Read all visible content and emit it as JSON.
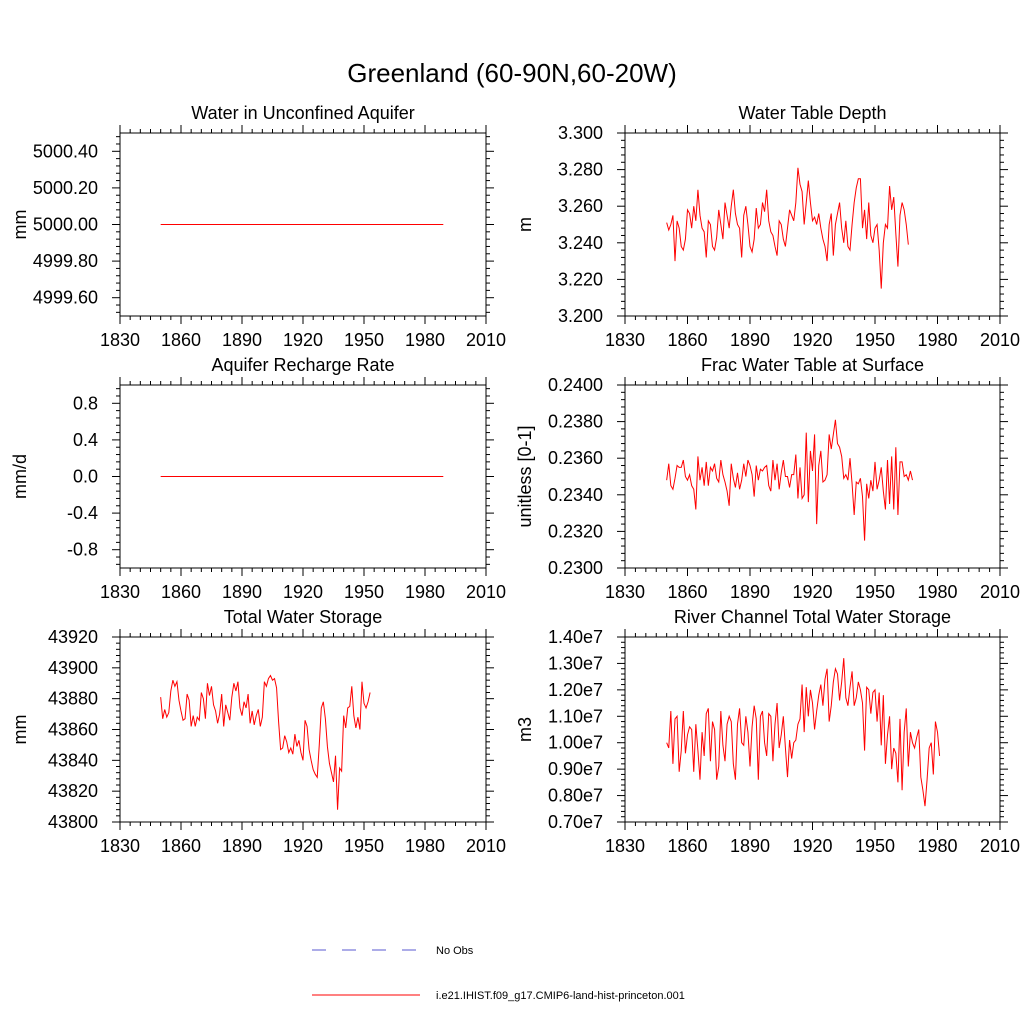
{
  "figure_title": "Greenland (60-90N,60-20W)",
  "legend": [
    {
      "label": "No Obs",
      "color": "#5a5ad0",
      "style": "dashed"
    },
    {
      "label": "i.e21.IHIST.f09_g17.CMIP6-land-hist-princeton.001",
      "color": "#ff0000",
      "style": "solid"
    }
  ],
  "chart_data": [
    {
      "type": "line",
      "title": "Water in Unconfined Aquifer",
      "ylabel": "mm",
      "xlim": [
        1830,
        2010
      ],
      "ylim": [
        4999.5,
        5000.5
      ],
      "xticks": [
        1830,
        1860,
        1890,
        1920,
        1950,
        1980,
        2010
      ],
      "yticks": [
        4999.6,
        4999.8,
        5000.0,
        5000.2,
        5000.4
      ],
      "ytick_labels": [
        "4999.60",
        "4999.80",
        "5000.00",
        "5000.20",
        "5000.40"
      ],
      "x_start": 1850,
      "series": [
        {
          "color": "#ff0000",
          "values": [
            5000,
            5000,
            5000,
            5000,
            5000,
            5000,
            5000,
            5000,
            5000,
            5000,
            5000,
            5000,
            5000,
            5000,
            5000,
            5000,
            5000,
            5000,
            5000,
            5000,
            5000,
            5000,
            5000,
            5000,
            5000,
            5000,
            5000,
            5000,
            5000,
            5000,
            5000,
            5000,
            5000,
            5000,
            5000,
            5000,
            5000,
            5000,
            5000,
            5000,
            5000,
            5000,
            5000,
            5000,
            5000,
            5000,
            5000,
            5000,
            5000,
            5000,
            5000,
            5000,
            5000,
            5000,
            5000,
            5000,
            5000,
            5000,
            5000,
            5000,
            5000,
            5000,
            5000,
            5000,
            5000,
            5000,
            5000,
            5000,
            5000,
            5000,
            5000,
            5000,
            5000,
            5000,
            5000,
            5000,
            5000,
            5000,
            5000,
            5000,
            5000,
            5000,
            5000,
            5000,
            5000,
            5000,
            5000,
            5000,
            5000,
            5000,
            5000,
            5000,
            5000,
            5000,
            5000,
            5000,
            5000,
            5000,
            5000,
            5000,
            5000,
            5000,
            5000,
            5000,
            5000,
            5000,
            5000,
            5000,
            5000,
            5000,
            5000,
            5000,
            5000,
            5000,
            5000,
            5000,
            5000,
            5000,
            5000,
            5000,
            5000,
            5000,
            5000,
            5000,
            5000,
            5000,
            5000,
            5000,
            5000,
            5000,
            5000,
            5000,
            5000,
            5000,
            5000,
            5000,
            5000,
            5000,
            5000,
            5000
          ]
        }
      ]
    },
    {
      "type": "line",
      "title": "Water Table Depth",
      "ylabel": "m",
      "xlim": [
        1830,
        2010
      ],
      "ylim": [
        3.2,
        3.3
      ],
      "xticks": [
        1830,
        1860,
        1890,
        1920,
        1950,
        1980,
        2010
      ],
      "yticks": [
        3.2,
        3.22,
        3.24,
        3.26,
        3.28,
        3.3
      ],
      "ytick_labels": [
        "3.200",
        "3.220",
        "3.240",
        "3.260",
        "3.280",
        "3.300"
      ],
      "x_start": 1850,
      "series": [
        {
          "color": "#ff0000",
          "values": [
            3.251,
            3.247,
            3.25,
            3.255,
            3.23,
            3.252,
            3.248,
            3.238,
            3.236,
            3.242,
            3.258,
            3.256,
            3.248,
            3.26,
            3.252,
            3.269,
            3.255,
            3.248,
            3.246,
            3.232,
            3.252,
            3.25,
            3.238,
            3.236,
            3.243,
            3.258,
            3.25,
            3.242,
            3.262,
            3.255,
            3.248,
            3.26,
            3.269,
            3.256,
            3.25,
            3.248,
            3.232,
            3.255,
            3.26,
            3.25,
            3.238,
            3.235,
            3.242,
            3.259,
            3.248,
            3.25,
            3.262,
            3.257,
            3.269,
            3.252,
            3.246,
            3.244,
            3.238,
            3.233,
            3.252,
            3.25,
            3.242,
            3.238,
            3.248,
            3.258,
            3.255,
            3.252,
            3.262,
            3.281,
            3.272,
            3.268,
            3.25,
            3.262,
            3.274,
            3.262,
            3.252,
            3.254,
            3.25,
            3.256,
            3.248,
            3.242,
            3.238,
            3.23,
            3.25,
            3.256,
            3.233,
            3.25,
            3.256,
            3.262,
            3.248,
            3.24,
            3.252,
            3.238,
            3.236,
            3.25,
            3.262,
            3.27,
            3.275,
            3.275,
            3.248,
            3.258,
            3.242,
            3.262,
            3.244,
            3.24,
            3.248,
            3.25,
            3.236,
            3.215,
            3.24,
            3.25,
            3.248,
            3.271,
            3.258,
            3.265,
            3.245,
            3.227,
            3.255,
            3.262,
            3.258,
            3.25,
            3.239
          ]
        }
      ]
    },
    {
      "type": "line",
      "title": "Aquifer Recharge Rate",
      "ylabel": "mm/d",
      "xlim": [
        1830,
        2010
      ],
      "ylim": [
        -1.0,
        1.0
      ],
      "xticks": [
        1830,
        1860,
        1890,
        1920,
        1950,
        1980,
        2010
      ],
      "yticks": [
        -0.8,
        -0.4,
        0.0,
        0.4,
        0.8
      ],
      "ytick_labels": [
        "-0.8",
        "-0.4",
        "0.0",
        "0.4",
        "0.8"
      ],
      "x_start": 1850,
      "series": [
        {
          "color": "#ff0000",
          "values": [
            0,
            0,
            0,
            0,
            0,
            0,
            0,
            0,
            0,
            0,
            0,
            0,
            0,
            0,
            0,
            0,
            0,
            0,
            0,
            0,
            0,
            0,
            0,
            0,
            0,
            0,
            0,
            0,
            0,
            0,
            0,
            0,
            0,
            0,
            0,
            0,
            0,
            0,
            0,
            0,
            0,
            0,
            0,
            0,
            0,
            0,
            0,
            0,
            0,
            0,
            0,
            0,
            0,
            0,
            0,
            0,
            0,
            0,
            0,
            0,
            0,
            0,
            0,
            0,
            0,
            0,
            0,
            0,
            0,
            0,
            0,
            0,
            0,
            0,
            0,
            0,
            0,
            0,
            0,
            0,
            0,
            0,
            0,
            0,
            0,
            0,
            0,
            0,
            0,
            0,
            0,
            0,
            0,
            0,
            0,
            0,
            0,
            0,
            0,
            0,
            0,
            0,
            0,
            0,
            0,
            0,
            0,
            0,
            0,
            0,
            0,
            0,
            0,
            0,
            0,
            0,
            0,
            0,
            0,
            0,
            0,
            0,
            0,
            0,
            0,
            0,
            0,
            0,
            0,
            0,
            0,
            0,
            0,
            0,
            0,
            0,
            0,
            0,
            0,
            0
          ]
        }
      ]
    },
    {
      "type": "line",
      "title": "Frac Water Table at Surface",
      "ylabel": "unitless [0-1]",
      "xlim": [
        1830,
        2010
      ],
      "ylim": [
        0.23,
        0.24
      ],
      "xticks": [
        1830,
        1860,
        1890,
        1920,
        1950,
        1980,
        2010
      ],
      "yticks": [
        0.23,
        0.232,
        0.234,
        0.236,
        0.238,
        0.24
      ],
      "ytick_labels": [
        "0.2300",
        "0.2320",
        "0.2340",
        "0.2360",
        "0.2380",
        "0.2400"
      ],
      "x_start": 1850,
      "series": [
        {
          "color": "#ff0000",
          "values": [
            0.2348,
            0.2357,
            0.2345,
            0.2343,
            0.2349,
            0.2356,
            0.2355,
            0.2355,
            0.2359,
            0.235,
            0.2348,
            0.2351,
            0.2345,
            0.2343,
            0.2332,
            0.2361,
            0.2348,
            0.2355,
            0.2345,
            0.2358,
            0.2345,
            0.2355,
            0.2353,
            0.2357,
            0.2349,
            0.2347,
            0.2359,
            0.2351,
            0.2347,
            0.2342,
            0.2334,
            0.2357,
            0.2349,
            0.2344,
            0.2352,
            0.2343,
            0.2348,
            0.2357,
            0.235,
            0.2359,
            0.2356,
            0.2351,
            0.2339,
            0.2356,
            0.2348,
            0.2354,
            0.2353,
            0.2355,
            0.2356,
            0.2345,
            0.2342,
            0.2359,
            0.2348,
            0.2357,
            0.2343,
            0.2352,
            0.2359,
            0.235,
            0.235,
            0.2344,
            0.2351,
            0.2351,
            0.2362,
            0.2338,
            0.2355,
            0.2338,
            0.234,
            0.2374,
            0.2336,
            0.2364,
            0.2353,
            0.2373,
            0.2324,
            0.2356,
            0.2364,
            0.2347,
            0.2348,
            0.2351,
            0.2373,
            0.2365,
            0.2373,
            0.2381,
            0.2368,
            0.2366,
            0.2361,
            0.2349,
            0.2351,
            0.2348,
            0.236,
            0.2346,
            0.2329,
            0.2347,
            0.2346,
            0.2349,
            0.2339,
            0.2315,
            0.2346,
            0.2338,
            0.2348,
            0.2342,
            0.2358,
            0.2343,
            0.2348,
            0.2355,
            0.2342,
            0.2332,
            0.2359,
            0.2335,
            0.2361,
            0.2332,
            0.2366,
            0.2329,
            0.2358,
            0.2358,
            0.235,
            0.2351,
            0.2348,
            0.2353,
            0.2348
          ]
        }
      ]
    },
    {
      "type": "line",
      "title": "Total Water Storage",
      "ylabel": "mm",
      "xlim": [
        1830,
        2010
      ],
      "ylim": [
        43800,
        43920
      ],
      "xticks": [
        1830,
        1860,
        1890,
        1920,
        1950,
        1980,
        2010
      ],
      "yticks": [
        43800,
        43820,
        43840,
        43860,
        43880,
        43900,
        43920
      ],
      "ytick_labels": [
        "43800",
        "43820",
        "43840",
        "43860",
        "43880",
        "43900",
        "43920"
      ],
      "x_start": 1850,
      "series": [
        {
          "color": "#ff0000",
          "values": [
            43881,
            43867,
            43873,
            43868,
            43871,
            43885,
            43892,
            43888,
            43891,
            43879,
            43872,
            43866,
            43867,
            43883,
            43879,
            43862,
            43869,
            43862,
            43868,
            43866,
            43884,
            43880,
            43867,
            43890,
            43882,
            43888,
            43876,
            43872,
            43864,
            43870,
            43883,
            43862,
            43876,
            43871,
            43866,
            43881,
            43890,
            43885,
            43891,
            43874,
            43869,
            43878,
            43874,
            43883,
            43864,
            43872,
            43863,
            43869,
            43873,
            43862,
            43868,
            43891,
            43888,
            43893,
            43895,
            43892,
            43893,
            43887,
            43865,
            43847,
            43848,
            43856,
            43852,
            43845,
            43848,
            43844,
            43857,
            43849,
            43853,
            43845,
            43840,
            43866,
            43862,
            43847,
            43840,
            43834,
            43831,
            43829,
            43850,
            43874,
            43878,
            43867,
            43849,
            43838,
            43832,
            43826,
            43843,
            43808,
            43835,
            43833,
            43869,
            43861,
            43874,
            43875,
            43888,
            43869,
            43861,
            43868,
            43860,
            43891,
            43877,
            43874,
            43878,
            43884
          ]
        }
      ]
    },
    {
      "type": "line",
      "title": "River Channel Total Water Storage",
      "ylabel": "m3",
      "xlim": [
        1830,
        2010
      ],
      "ylim": [
        7000000,
        14000000
      ],
      "xticks": [
        1830,
        1860,
        1890,
        1920,
        1950,
        1980,
        2010
      ],
      "yticks": [
        7000000,
        8000000,
        9000000,
        10000000,
        11000000,
        12000000,
        13000000,
        14000000
      ],
      "ytick_labels": [
        "0.70e7",
        "0.80e7",
        "0.90e7",
        "1.00e7",
        "1.10e7",
        "1.20e7",
        "1.30e7",
        "1.40e7"
      ],
      "x_start": 1850,
      "series": [
        {
          "color": "#ff0000",
          "values": [
            10000000,
            9800000,
            11200000,
            9200000,
            10900000,
            11000000,
            8900000,
            9700000,
            11200000,
            9600000,
            10300000,
            10600000,
            10500000,
            8900000,
            10700000,
            9700000,
            8600000,
            10400000,
            9500000,
            11100000,
            11300000,
            9300000,
            10800000,
            10500000,
            8600000,
            9100000,
            11200000,
            9900000,
            9300000,
            10700000,
            11000000,
            10800000,
            9200000,
            8600000,
            10700000,
            11300000,
            10000000,
            9900000,
            11000000,
            10400000,
            9100000,
            10600000,
            11400000,
            10900000,
            8600000,
            11000000,
            11200000,
            10000000,
            9500000,
            11100000,
            11000000,
            9300000,
            10700000,
            11500000,
            9800000,
            10300000,
            11000000,
            9800000,
            8700000,
            10100000,
            9400000,
            10000000,
            10100000,
            10700000,
            10900000,
            12200000,
            10400000,
            12100000,
            11000000,
            12000000,
            11500000,
            10500000,
            11200000,
            11800000,
            12200000,
            11400000,
            12400000,
            12800000,
            10800000,
            11400000,
            12300000,
            12800000,
            12600000,
            11600000,
            12300000,
            13200000,
            11700000,
            11400000,
            12100000,
            12700000,
            11400000,
            11700000,
            12300000,
            12000000,
            11500000,
            9700000,
            12100000,
            12000000,
            11100000,
            11900000,
            12000000,
            10800000,
            11900000,
            9900000,
            11800000,
            9200000,
            10300000,
            11000000,
            9000000,
            9800000,
            9600000,
            8500000,
            10900000,
            8200000,
            10400000,
            11300000,
            9100000,
            10400000,
            10000000,
            9800000,
            10200000,
            10500000,
            8700000,
            8200000,
            7600000,
            8600000,
            9800000,
            10000000,
            8800000,
            10800000,
            10400000,
            9500000
          ]
        }
      ]
    }
  ]
}
